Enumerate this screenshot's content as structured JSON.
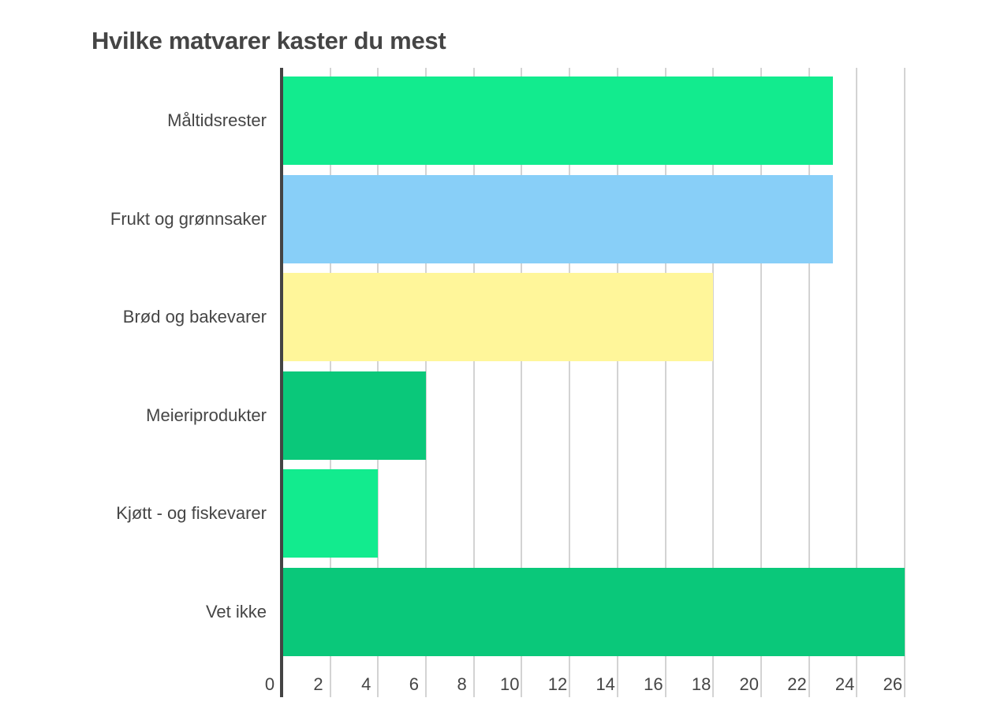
{
  "chart_data": {
    "type": "bar",
    "orientation": "horizontal",
    "title": "Hvilke matvarer kaster du mest",
    "xlabel": "",
    "ylabel": "",
    "categories": [
      "Måltidsrester",
      "Frukt og grønnsaker",
      "Brød og bakevarer",
      "Meieriprodukter",
      "Kjøtt - og fiskevarer",
      "Vet ikke"
    ],
    "values": [
      23,
      23,
      18,
      6,
      4,
      26
    ],
    "colors": [
      "#12EB8E",
      "#88CFF8",
      "#FFF69A",
      "#0AC87A",
      "#12EB8E",
      "#0AC87A"
    ],
    "xlim": [
      0,
      26
    ],
    "xticks": [
      "0",
      "2",
      "4",
      "6",
      "8",
      "10",
      "12",
      "14",
      "16",
      "18",
      "20",
      "22",
      "24",
      "26"
    ],
    "grid": true,
    "legend": false
  }
}
